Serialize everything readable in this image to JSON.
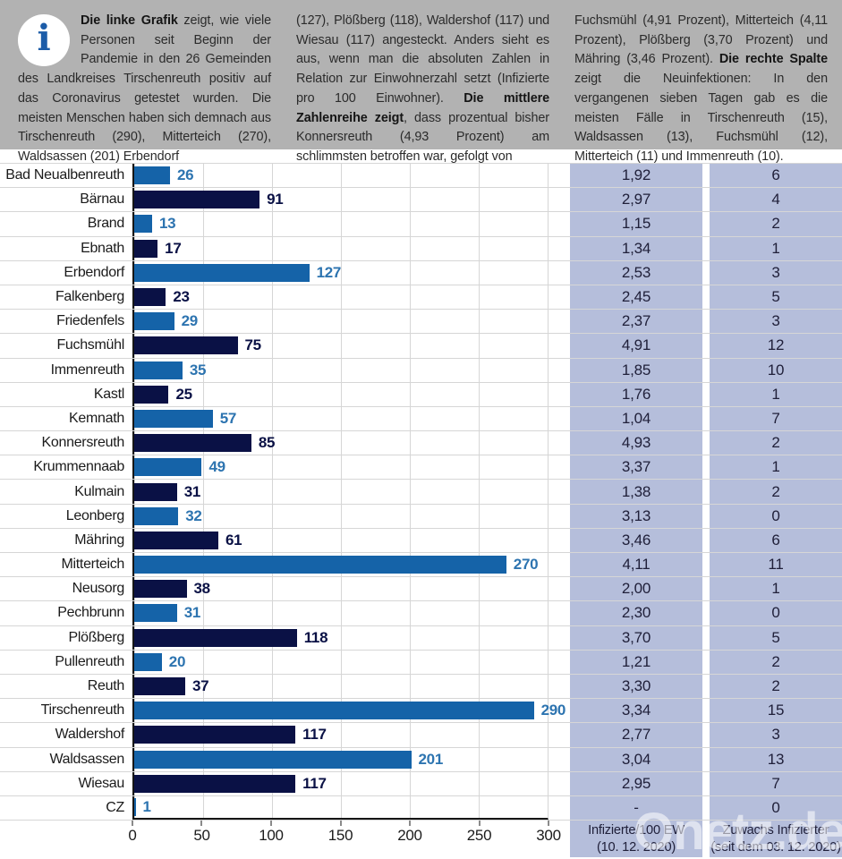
{
  "colors": {
    "header_bg": "#b2b2b2",
    "bar_light": "#1563a8",
    "bar_dark": "#0a1145",
    "value_label_light": "#2d74b0",
    "value_label_dark": "#0a1145",
    "column_bg": "#b5bedb",
    "gridline": "#d6d6d6",
    "axis": "#161616",
    "info_icon_blue": "#1c5ca8"
  },
  "info": {
    "icon_glyph": "i",
    "col1_segments": [
      {
        "t": "Die linke Grafik",
        "b": true
      },
      {
        "t": " zeigt, wie viele Personen seit Beginn der Pandemie in den 26 Gemeinden des Landkreises Tirschenreuth positiv auf das Coronavirus getestet wurden. Die meisten Menschen haben sich demnach aus Tirschenreuth (290), Mitterteich (270), Waldsassen (201) Erbendorf",
        "b": false
      }
    ],
    "col2_segments": [
      {
        "t": "(127), Plößberg (118), Waldershof (117) und Wiesau (117) angesteckt. Anders sieht es aus, wenn man die absoluten Zahlen in Relation zur Einwohnerzahl setzt (Infizierte pro 100 Einwohner). ",
        "b": false
      },
      {
        "t": "Die mittlere Zahlenreihe zeigt",
        "b": true
      },
      {
        "t": ", dass prozentual bisher Konnersreuth (4,93 Prozent) am schlimmsten betroffen war, gefolgt von",
        "b": false
      }
    ],
    "col3_segments": [
      {
        "t": "Fuchsmühl (4,91 Prozent), Mitterteich (4,11 Prozent), Plößberg (3,70 Prozent) und Mähring (3,46 Prozent). ",
        "b": false
      },
      {
        "t": "Die rechte Spalte",
        "b": true
      },
      {
        "t": " zeigt die Neuinfektionen: In den vergangenen sieben Tagen gab es die meisten Fälle in Tirschenreuth (15), Waldsassen (13), Fuchsmühl (12), Mitterteich (11) und Immenreuth (10).",
        "b": false
      }
    ]
  },
  "columns": {
    "per100": {
      "line1": "Infizierte/100 EW",
      "line2": "(10. 12. 2020)"
    },
    "new_infections": {
      "line1": "Zuwachs Infizierter",
      "line2": "(seit dem 03. 12. 2020)"
    }
  },
  "watermark": "Onetz.de",
  "chart_data": {
    "type": "bar",
    "orientation": "horizontal",
    "title": "",
    "xlabel": "",
    "ylabel": "",
    "xlim": [
      0,
      300
    ],
    "x_ticks": [
      0,
      50,
      100,
      150,
      200,
      250,
      300
    ],
    "grid": true,
    "bar_colors_alternate": [
      "#1563a8",
      "#0a1145"
    ],
    "rows": [
      {
        "name": "Bad Neualbenreuth",
        "cases": 26,
        "per_100_ew": "1,92",
        "new_infections": "6"
      },
      {
        "name": "Bärnau",
        "cases": 91,
        "per_100_ew": "2,97",
        "new_infections": "4"
      },
      {
        "name": "Brand",
        "cases": 13,
        "per_100_ew": "1,15",
        "new_infections": "2"
      },
      {
        "name": "Ebnath",
        "cases": 17,
        "per_100_ew": "1,34",
        "new_infections": "1"
      },
      {
        "name": "Erbendorf",
        "cases": 127,
        "per_100_ew": "2,53",
        "new_infections": "3"
      },
      {
        "name": "Falkenberg",
        "cases": 23,
        "per_100_ew": "2,45",
        "new_infections": "5"
      },
      {
        "name": "Friedenfels",
        "cases": 29,
        "per_100_ew": "2,37",
        "new_infections": "3"
      },
      {
        "name": "Fuchsmühl",
        "cases": 75,
        "per_100_ew": "4,91",
        "new_infections": "12"
      },
      {
        "name": "Immenreuth",
        "cases": 35,
        "per_100_ew": "1,85",
        "new_infections": "10"
      },
      {
        "name": "Kastl",
        "cases": 25,
        "per_100_ew": "1,76",
        "new_infections": "1"
      },
      {
        "name": "Kemnath",
        "cases": 57,
        "per_100_ew": "1,04",
        "new_infections": "7"
      },
      {
        "name": "Konnersreuth",
        "cases": 85,
        "per_100_ew": "4,93",
        "new_infections": "2"
      },
      {
        "name": "Krummennaab",
        "cases": 49,
        "per_100_ew": "3,37",
        "new_infections": "1"
      },
      {
        "name": "Kulmain",
        "cases": 31,
        "per_100_ew": "1,38",
        "new_infections": "2"
      },
      {
        "name": "Leonberg",
        "cases": 32,
        "per_100_ew": "3,13",
        "new_infections": "0"
      },
      {
        "name": "Mähring",
        "cases": 61,
        "per_100_ew": "3,46",
        "new_infections": "6"
      },
      {
        "name": "Mitterteich",
        "cases": 270,
        "per_100_ew": "4,11",
        "new_infections": "11"
      },
      {
        "name": "Neusorg",
        "cases": 38,
        "per_100_ew": "2,00",
        "new_infections": "1"
      },
      {
        "name": "Pechbrunn",
        "cases": 31,
        "per_100_ew": "2,30",
        "new_infections": "0"
      },
      {
        "name": "Plößberg",
        "cases": 118,
        "per_100_ew": "3,70",
        "new_infections": "5"
      },
      {
        "name": "Pullenreuth",
        "cases": 20,
        "per_100_ew": "1,21",
        "new_infections": "2"
      },
      {
        "name": "Reuth",
        "cases": 37,
        "per_100_ew": "3,30",
        "new_infections": "2"
      },
      {
        "name": "Tirschenreuth",
        "cases": 290,
        "per_100_ew": "3,34",
        "new_infections": "15"
      },
      {
        "name": "Waldershof",
        "cases": 117,
        "per_100_ew": "2,77",
        "new_infections": "3"
      },
      {
        "name": "Waldsassen",
        "cases": 201,
        "per_100_ew": "3,04",
        "new_infections": "13"
      },
      {
        "name": "Wiesau",
        "cases": 117,
        "per_100_ew": "2,95",
        "new_infections": "7"
      },
      {
        "name": "CZ",
        "cases": 1,
        "per_100_ew": "-",
        "new_infections": "0"
      }
    ]
  }
}
